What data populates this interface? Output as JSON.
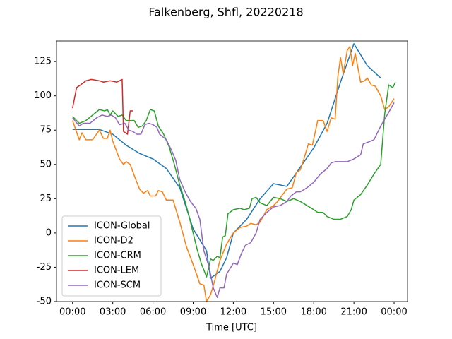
{
  "chart_data": {
    "type": "line",
    "title": "Falkenberg, Shfl, 20220218",
    "xlabel": "Time [UTC]",
    "xlim": [
      -1.2,
      25.0
    ],
    "ylim": [
      -50,
      140
    ],
    "xticks": [
      {
        "value": 0,
        "label": "00:00"
      },
      {
        "value": 3,
        "label": "03:00"
      },
      {
        "value": 6,
        "label": "06:00"
      },
      {
        "value": 9,
        "label": "09:00"
      },
      {
        "value": 12,
        "label": "12:00"
      },
      {
        "value": 15,
        "label": "15:00"
      },
      {
        "value": 18,
        "label": "18:00"
      },
      {
        "value": 21,
        "label": "21:00"
      },
      {
        "value": 24,
        "label": "00:00"
      }
    ],
    "yticks": [
      -50,
      -25,
      0,
      25,
      50,
      75,
      100,
      125
    ],
    "legend": "lower left",
    "grid": false,
    "series": [
      {
        "name": "ICON-Global",
        "color": "#1f77b4",
        "x": [
          0,
          1,
          2,
          3,
          4,
          5,
          6,
          7,
          8,
          9,
          10,
          10.3,
          11,
          11.5,
          12,
          13,
          14,
          15,
          16,
          17,
          18,
          19,
          20,
          21,
          22,
          23
        ],
        "values": [
          75.5,
          75.5,
          75.5,
          72,
          64,
          58,
          54,
          47,
          33,
          3,
          -13,
          -33,
          -28,
          -18,
          0,
          10,
          25,
          36,
          34,
          48,
          62,
          80,
          110,
          138,
          122,
          113
        ]
      },
      {
        "name": "ICON-D2",
        "color": "#ff7f0e",
        "x": [
          0,
          0.5,
          0.7,
          1,
          1.5,
          2,
          2.3,
          2.6,
          2.8,
          3,
          3.5,
          3.8,
          4,
          4.3,
          4.6,
          5,
          5.3,
          5.6,
          5.8,
          6.2,
          6.4,
          6.7,
          7,
          7.5,
          8,
          8.5,
          9,
          9.5,
          9.8,
          10,
          10.3,
          10.6,
          11,
          11.5,
          12,
          12.5,
          13,
          13.3,
          13.7,
          14,
          14.5,
          15,
          15.3,
          15.6,
          16,
          16.4,
          16.7,
          17,
          17.3,
          17.6,
          17.9,
          18.3,
          18.7,
          19,
          19.3,
          19.6,
          19.8,
          20,
          20.2,
          20.5,
          20.7,
          20.9,
          21.1,
          21.5,
          21.8,
          22,
          22.3,
          22.6,
          23,
          23.3,
          23.6,
          24
        ],
        "values": [
          82,
          68,
          73,
          68,
          68,
          75,
          69,
          69,
          75,
          67,
          54,
          50,
          52,
          50,
          42,
          32,
          29,
          31,
          27,
          27,
          31,
          30,
          24,
          24,
          8,
          -10,
          -23,
          -37,
          -38,
          -50,
          -45,
          -35,
          -20,
          -8,
          0,
          4,
          5,
          7,
          6,
          8,
          17,
          20,
          23,
          27,
          32,
          33,
          44,
          46,
          55,
          65,
          64,
          82,
          82,
          74,
          84,
          83,
          114,
          128,
          116,
          133,
          136,
          122,
          131,
          110,
          111,
          113,
          108,
          107,
          100,
          90,
          92,
          98
        ]
      },
      {
        "name": "ICON-CRM",
        "color": "#2ca02c",
        "x": [
          0,
          0.5,
          1,
          1.5,
          2,
          2.4,
          2.6,
          2.8,
          3,
          3.4,
          3.7,
          4,
          4.3,
          4.6,
          4.9,
          5.2,
          5.5,
          5.8,
          6.1,
          6.4,
          6.8,
          7.2,
          7.6,
          8,
          8.4,
          8.7,
          9,
          9.3,
          9.6,
          10,
          10.3,
          10.5,
          10.8,
          11,
          11.2,
          11.4,
          11.6,
          12,
          12.5,
          12.8,
          13.2,
          13.4,
          13.7,
          14,
          14.5,
          15,
          15.5,
          16,
          16.5,
          17,
          17.5,
          18,
          18.3,
          18.7,
          19,
          19.5,
          20,
          20.5,
          20.8,
          21,
          21.5,
          22,
          22.5,
          23,
          23.3,
          23.6,
          23.9,
          24.1
        ],
        "values": [
          85,
          80,
          82,
          86,
          90,
          89,
          90,
          86,
          89,
          85,
          86,
          82,
          82,
          82,
          77,
          78,
          82,
          90,
          89,
          78,
          72,
          63,
          50,
          35,
          23,
          12,
          0,
          -12,
          -22,
          -32,
          -19,
          -20,
          -17,
          -18,
          -3,
          -2,
          14,
          17,
          18,
          17,
          18,
          25,
          26,
          22,
          20,
          26,
          25,
          23,
          25,
          23,
          20,
          17,
          15,
          15,
          12,
          10,
          10,
          12,
          17,
          24,
          28,
          35,
          43,
          50,
          87,
          108,
          106,
          110
        ]
      },
      {
        "name": "ICON-LEM",
        "color": "#d62728",
        "x": [
          0,
          0.3,
          0.6,
          1,
          1.4,
          2,
          2.3,
          2.8,
          3.3,
          3.7,
          3.8,
          4.1,
          4.3,
          4.5
        ],
        "values": [
          91,
          106,
          108,
          111,
          112,
          111,
          110,
          111,
          110,
          112,
          74,
          72,
          89,
          89
        ]
      },
      {
        "name": "ICON-SCM",
        "color": "#9467bd",
        "x": [
          0,
          0.5,
          0.8,
          1.3,
          1.8,
          2.2,
          2.6,
          2.9,
          3.2,
          3.5,
          3.9,
          4.2,
          4.5,
          4.8,
          5.1,
          5.4,
          5.7,
          6,
          6.3,
          6.5,
          7,
          7.4,
          7.7,
          8,
          8.4,
          8.8,
          9.2,
          9.5,
          9.8,
          10.2,
          10.5,
          10.8,
          11,
          11.3,
          11.5,
          12,
          12.3,
          12.6,
          12.9,
          13.3,
          13.7,
          14,
          14.5,
          15,
          15.5,
          16,
          16.3,
          16.7,
          17,
          17.5,
          18,
          18.5,
          19,
          19.3,
          19.6,
          20,
          20.5,
          21,
          21.5,
          21.7,
          22,
          22.5,
          22.8,
          23,
          23.3,
          23.6,
          24
        ],
        "values": [
          84,
          78,
          80,
          80,
          84,
          86,
          85,
          86,
          84,
          79,
          80,
          75,
          74,
          72,
          72,
          79,
          80,
          79,
          77,
          72,
          68,
          60,
          53,
          39,
          30,
          23,
          18,
          10,
          -13,
          -25,
          -40,
          -47,
          -40,
          -40,
          -30,
          -22,
          -23,
          -15,
          -9,
          -7,
          0,
          10,
          15,
          19,
          20,
          23,
          27,
          30,
          30,
          33,
          37,
          43,
          47,
          51,
          52,
          52,
          52,
          54,
          57,
          65,
          66,
          68,
          74,
          78,
          83,
          88,
          95
        ]
      }
    ]
  }
}
